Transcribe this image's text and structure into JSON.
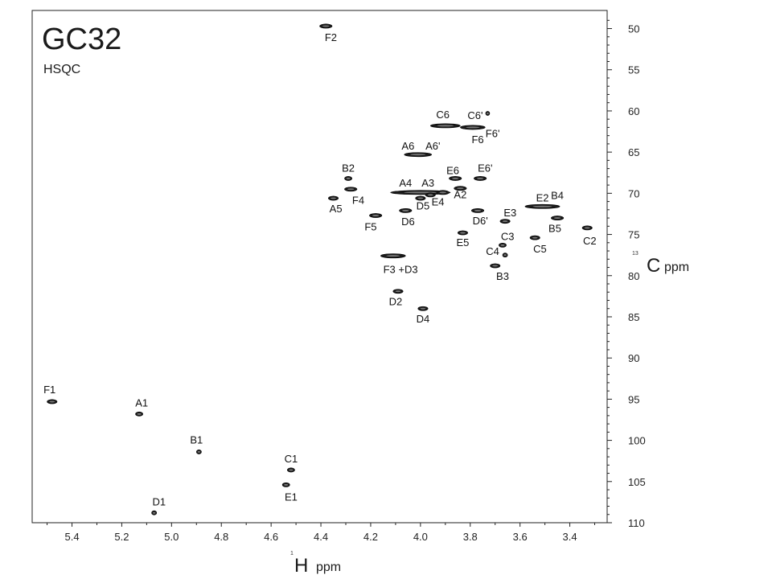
{
  "chart_data": {
    "type": "scatter",
    "title": "GC32",
    "subtitle": "HSQC",
    "x_axis": {
      "nucleus_sup": "1",
      "nucleus": "H",
      "unit": "ppm",
      "range": [
        5.56,
        3.25
      ],
      "reversed": true,
      "ticks": [
        5.4,
        5.2,
        5.0,
        4.8,
        4.6,
        4.4,
        4.2,
        4.0,
        3.8,
        3.6,
        3.4
      ],
      "tick_labels": [
        "5.4",
        "5.2",
        "5.0",
        "4.8",
        "4.6",
        "4.4",
        "4.2",
        "4.0",
        "3.8",
        "3.6",
        "3.4"
      ]
    },
    "y_axis": {
      "nucleus_sup": "13",
      "nucleus": "C",
      "unit": "ppm",
      "range": [
        47.8,
        110
      ],
      "position": "right",
      "ticks": [
        50,
        55,
        60,
        65,
        70,
        75,
        80,
        85,
        90,
        95,
        100,
        105,
        110
      ],
      "tick_labels": [
        "50",
        "55",
        "60",
        "65",
        "70",
        "75",
        "80",
        "85",
        "90",
        "95",
        "100",
        "105",
        "110"
      ]
    },
    "grid": false,
    "legend": "none",
    "peak_color": "#1a1a1a",
    "peaks": [
      {
        "x": 4.38,
        "y": 49.7,
        "w": 0.05
      },
      {
        "x": 3.9,
        "y": 61.8,
        "w": 0.12
      },
      {
        "x": 3.79,
        "y": 62.0,
        "w": 0.1
      },
      {
        "x": 3.73,
        "y": 60.3,
        "w": 0.01
      },
      {
        "x": 4.01,
        "y": 65.3,
        "w": 0.11
      },
      {
        "x": 3.86,
        "y": 68.2,
        "w": 0.05
      },
      {
        "x": 3.76,
        "y": 68.2,
        "w": 0.05
      },
      {
        "x": 4.29,
        "y": 68.2,
        "w": 0.03
      },
      {
        "x": 4.28,
        "y": 69.5,
        "w": 0.05
      },
      {
        "x": 4.0,
        "y": 69.9,
        "w": 0.24
      },
      {
        "x": 3.91,
        "y": 69.9,
        "w": 0.05
      },
      {
        "x": 3.84,
        "y": 69.4,
        "w": 0.05
      },
      {
        "x": 3.96,
        "y": 70.2,
        "w": 0.04
      },
      {
        "x": 4.35,
        "y": 70.6,
        "w": 0.04
      },
      {
        "x": 4.0,
        "y": 70.6,
        "w": 0.04
      },
      {
        "x": 4.06,
        "y": 72.1,
        "w": 0.05
      },
      {
        "x": 3.77,
        "y": 72.1,
        "w": 0.05
      },
      {
        "x": 4.18,
        "y": 72.7,
        "w": 0.05
      },
      {
        "x": 3.66,
        "y": 73.4,
        "w": 0.04
      },
      {
        "x": 3.51,
        "y": 71.6,
        "w": 0.14
      },
      {
        "x": 3.45,
        "y": 73.0,
        "w": 0.05
      },
      {
        "x": 3.33,
        "y": 74.2,
        "w": 0.04
      },
      {
        "x": 3.83,
        "y": 74.8,
        "w": 0.04
      },
      {
        "x": 3.67,
        "y": 76.3,
        "w": 0.03
      },
      {
        "x": 3.54,
        "y": 75.4,
        "w": 0.04
      },
      {
        "x": 3.66,
        "y": 77.5,
        "w": 0.02
      },
      {
        "x": 3.7,
        "y": 78.8,
        "w": 0.04
      },
      {
        "x": 4.11,
        "y": 77.6,
        "w": 0.1
      },
      {
        "x": 4.09,
        "y": 81.9,
        "w": 0.04
      },
      {
        "x": 3.99,
        "y": 84.0,
        "w": 0.04
      },
      {
        "x": 5.48,
        "y": 95.3,
        "w": 0.04
      },
      {
        "x": 5.13,
        "y": 96.8,
        "w": 0.03
      },
      {
        "x": 4.89,
        "y": 101.4,
        "w": 0.02
      },
      {
        "x": 4.52,
        "y": 103.6,
        "w": 0.03
      },
      {
        "x": 4.54,
        "y": 105.4,
        "w": 0.03
      },
      {
        "x": 5.07,
        "y": 108.8,
        "w": 0.02
      }
    ],
    "labels": [
      {
        "text": "F2",
        "x": 4.36,
        "y": 51.1
      },
      {
        "text": "C6",
        "x": 3.91,
        "y": 60.5
      },
      {
        "text": "C6'",
        "x": 3.78,
        "y": 60.6
      },
      {
        "text": "F6",
        "x": 3.77,
        "y": 63.5
      },
      {
        "text": "F6'",
        "x": 3.71,
        "y": 62.8
      },
      {
        "text": "A6",
        "x": 4.05,
        "y": 64.3
      },
      {
        "text": "A6'",
        "x": 3.95,
        "y": 64.3
      },
      {
        "text": "B2",
        "x": 4.29,
        "y": 67.0
      },
      {
        "text": "E6",
        "x": 3.87,
        "y": 67.3
      },
      {
        "text": "E6'",
        "x": 3.74,
        "y": 67.0
      },
      {
        "text": "A4",
        "x": 4.06,
        "y": 68.8
      },
      {
        "text": "A3",
        "x": 3.97,
        "y": 68.8
      },
      {
        "text": "F4",
        "x": 4.25,
        "y": 70.9
      },
      {
        "text": "A2",
        "x": 3.84,
        "y": 70.2
      },
      {
        "text": "E4",
        "x": 3.93,
        "y": 71.1
      },
      {
        "text": "D5",
        "x": 3.99,
        "y": 71.6
      },
      {
        "text": "A5",
        "x": 4.34,
        "y": 71.9
      },
      {
        "text": "E2",
        "x": 3.51,
        "y": 70.6
      },
      {
        "text": "B4",
        "x": 3.45,
        "y": 70.3
      },
      {
        "text": "E3",
        "x": 3.64,
        "y": 72.4
      },
      {
        "text": "D6",
        "x": 4.05,
        "y": 73.5
      },
      {
        "text": "D6'",
        "x": 3.76,
        "y": 73.4
      },
      {
        "text": "F5",
        "x": 4.2,
        "y": 74.1
      },
      {
        "text": "B5",
        "x": 3.46,
        "y": 74.3
      },
      {
        "text": "C3",
        "x": 3.65,
        "y": 75.3
      },
      {
        "text": "C2",
        "x": 3.32,
        "y": 75.8
      },
      {
        "text": "E5",
        "x": 3.83,
        "y": 76.0
      },
      {
        "text": "C5",
        "x": 3.52,
        "y": 76.8
      },
      {
        "text": "C4",
        "x": 3.71,
        "y": 77.1
      },
      {
        "text": "F3 +D3",
        "x": 4.08,
        "y": 79.3
      },
      {
        "text": "B3",
        "x": 3.67,
        "y": 80.1
      },
      {
        "text": "D2",
        "x": 4.1,
        "y": 83.2
      },
      {
        "text": "D4",
        "x": 3.99,
        "y": 85.3
      },
      {
        "text": "F1",
        "x": 5.49,
        "y": 93.9
      },
      {
        "text": "A1",
        "x": 5.12,
        "y": 95.5
      },
      {
        "text": "B1",
        "x": 4.9,
        "y": 100.0
      },
      {
        "text": "C1",
        "x": 4.52,
        "y": 102.3
      },
      {
        "text": "E1",
        "x": 4.52,
        "y": 106.9
      },
      {
        "text": "D1",
        "x": 5.05,
        "y": 107.5
      }
    ]
  }
}
